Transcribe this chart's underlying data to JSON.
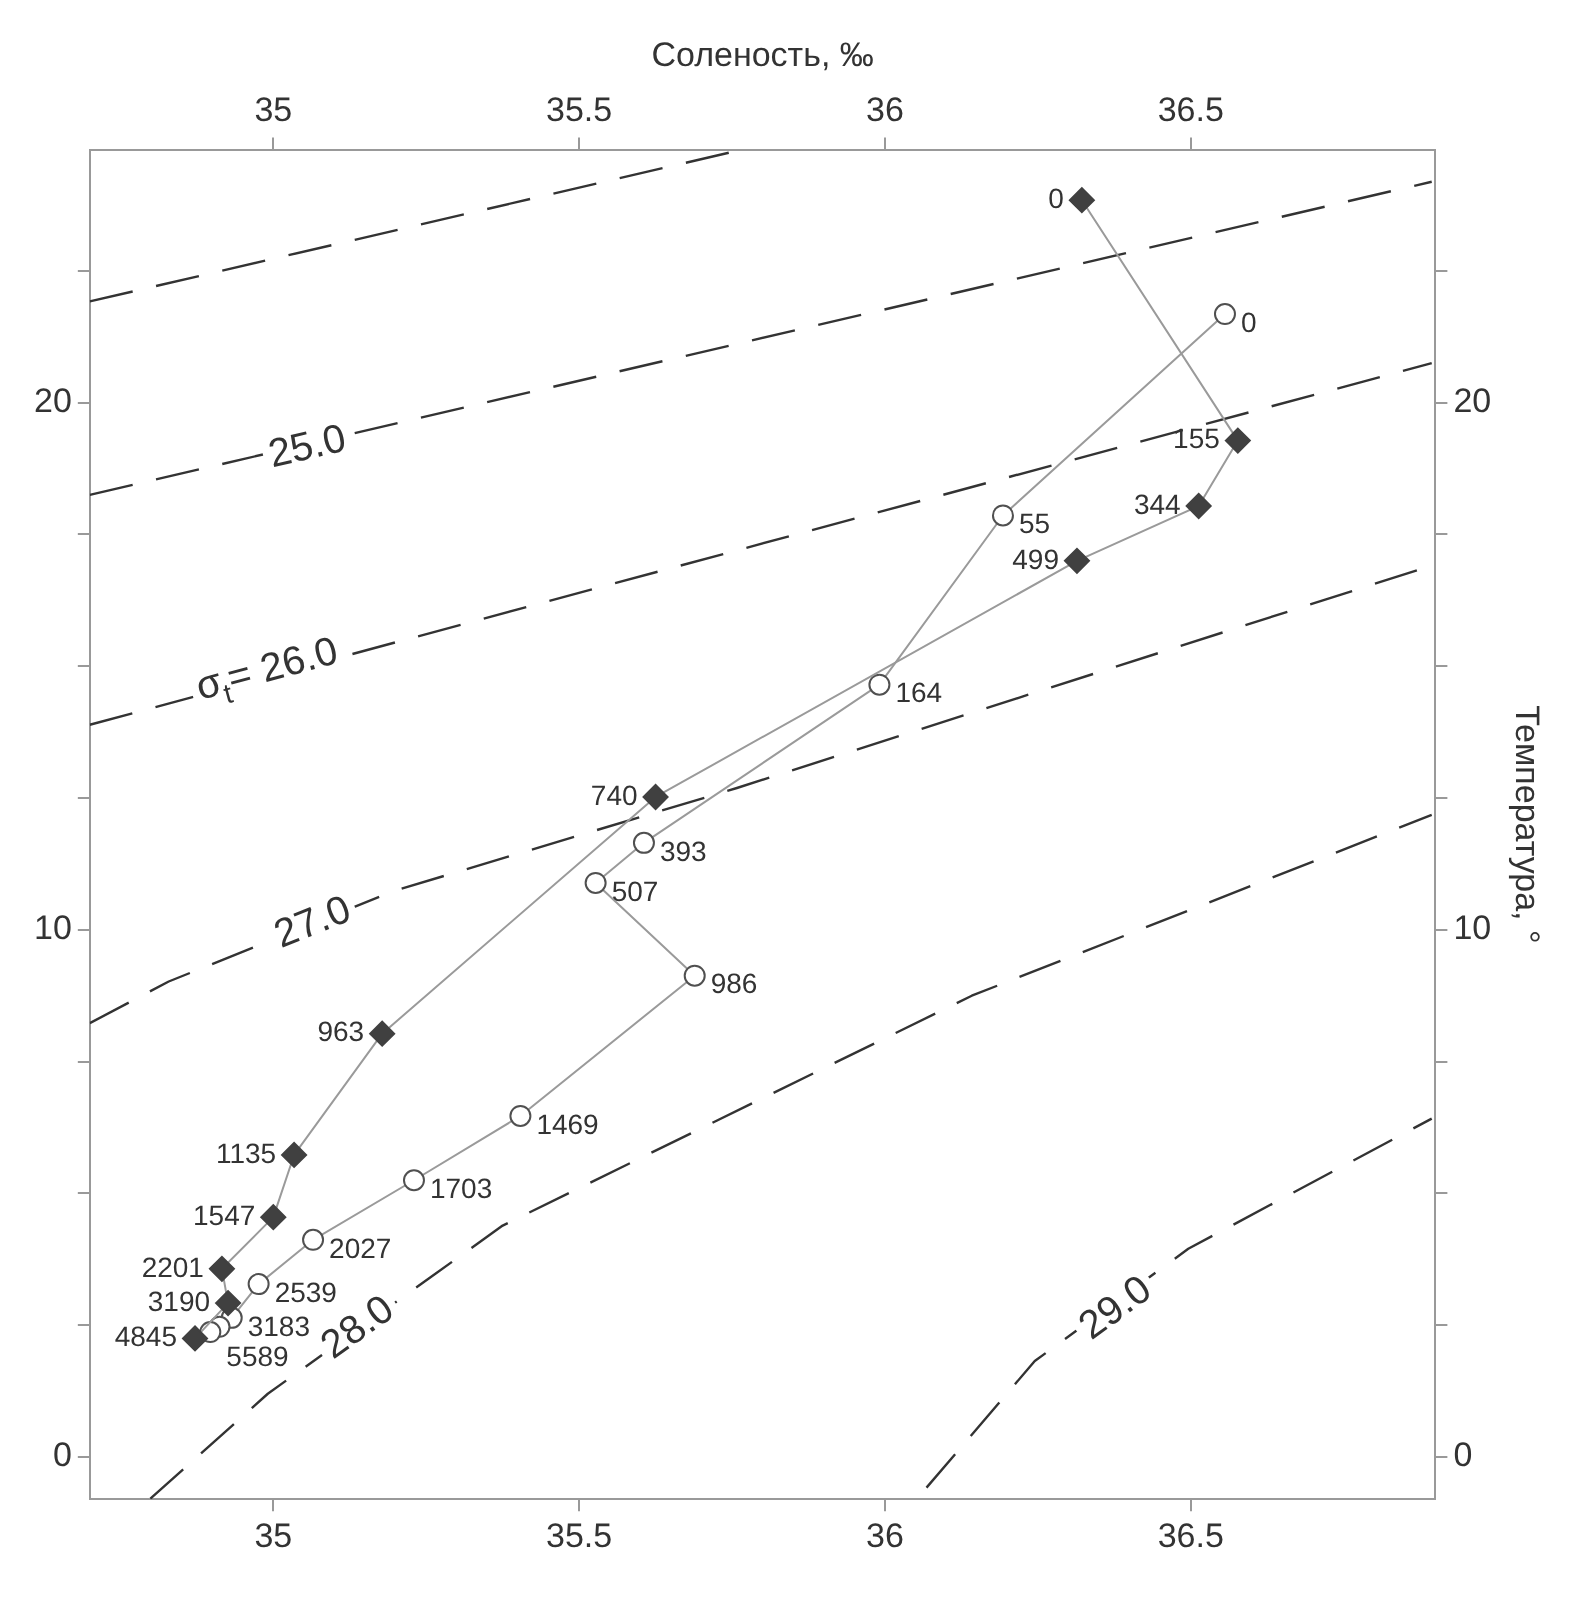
{
  "chart_data": {
    "type": "line",
    "x2label": "Соленость, ‰",
    "y2label": "Температура, °",
    "xlim": [
      34.7,
      36.9
    ],
    "xticks": [
      35,
      35.5,
      36,
      36.5
    ],
    "x2lim": [
      34.7,
      36.9
    ],
    "x2ticks": [
      35,
      35.5,
      36,
      36.5
    ],
    "ylim": [
      -0.8,
      24.8
    ],
    "yticks": [
      0,
      {
        "value": 2.5,
        "label": null
      },
      {
        "value": 5,
        "label": null
      },
      {
        "value": 7.5,
        "label": null
      },
      10,
      {
        "value": 12.5,
        "label": null
      },
      {
        "value": 15,
        "label": null
      },
      {
        "value": 17.5,
        "label": null
      },
      20,
      {
        "value": 22.5,
        "label": null
      }
    ],
    "y2lim": [
      -0.8,
      24.8
    ],
    "y2ticks": [
      0,
      {
        "value": 2.5,
        "label": null
      },
      {
        "value": 5,
        "label": null
      },
      {
        "value": 7.5,
        "label": null
      },
      10,
      {
        "value": 12.5,
        "label": null
      },
      {
        "value": 15,
        "label": null
      },
      {
        "value": 17.5,
        "label": null
      },
      20,
      {
        "value": 22.5,
        "label": null
      }
    ],
    "grid": false,
    "legend": false,
    "series": [
      {
        "color": "#404040",
        "marker": "diamond",
        "line_style": "solid",
        "x": [
          36.322,
          36.577,
          36.513,
          36.314,
          35.625,
          35.178,
          35.034,
          35.0,
          34.916,
          34.926,
          34.872
        ],
        "values": [
          23.84,
          19.28,
          18.04,
          17.0,
          12.52,
          8.03,
          5.73,
          4.55,
          3.57,
          2.92,
          2.25
        ]
      },
      {
        "color": "#505050",
        "marker": "circle",
        "line_style": "solid",
        "x": [
          36.556,
          36.193,
          35.991,
          35.606,
          35.527,
          35.689,
          35.404,
          35.23,
          35.065,
          34.976,
          34.932,
          34.912,
          34.897
        ],
        "values": [
          21.68,
          17.86,
          14.65,
          11.65,
          10.89,
          9.13,
          6.47,
          5.25,
          4.12,
          3.28,
          2.64,
          2.47,
          2.37
        ]
      },
      {
        "color": "#333333",
        "marker": "none",
        "line_style": "dashed",
        "x": [
          34.7,
          35.767
        ],
        "values": [
          21.92,
          24.8
        ]
      },
      {
        "color": "#333333",
        "marker": "none",
        "line_style": "dashed",
        "x": [
          34.7,
          36.894
        ],
        "values": [
          18.25,
          24.19
        ]
      },
      {
        "color": "#333333",
        "marker": "none",
        "line_style": "dashed",
        "x": [
          34.7,
          36.894
        ],
        "values": [
          13.89,
          20.75
        ]
      },
      {
        "color": "#333333",
        "marker": "none",
        "line_style": "dashed",
        "x": [
          34.7,
          34.829,
          35.198,
          35.758,
          36.894
        ],
        "values": [
          8.23,
          9.02,
          10.74,
          12.69,
          16.91
        ]
      },
      {
        "color": "#333333",
        "marker": "none",
        "line_style": "dashed",
        "x": [
          34.799,
          34.991,
          35.375,
          36.142,
          36.894
        ],
        "values": [
          -0.79,
          1.2,
          4.39,
          8.75,
          12.18
        ]
      },
      {
        "color": "#333333",
        "marker": "none",
        "line_style": "dashed",
        "x": [
          36.068,
          36.245,
          36.496,
          36.894
        ],
        "values": [
          -0.58,
          1.82,
          3.95,
          6.42
        ]
      }
    ],
    "annotations": [
      {
        "text": "25.0",
        "x": 35.056,
        "y": 19.14
      },
      {
        "text": "σ$_{t}$= 26.0",
        "x": 34.99,
        "y": 14.92
      },
      {
        "text": "27.0",
        "x": 35.065,
        "y": 10.12
      },
      {
        "text": "28.0",
        "x": 35.139,
        "y": 2.44
      },
      {
        "text": "29.0",
        "x": 36.378,
        "y": 2.81
      },
      {
        "text": "0",
        "x": 36.322,
        "y": 23.84
      },
      {
        "text": "155",
        "x": 36.577,
        "y": 19.28
      },
      {
        "text": "344",
        "x": 36.513,
        "y": 18.04
      },
      {
        "text": "499",
        "x": 36.314,
        "y": 17.0
      },
      {
        "text": "740",
        "x": 35.625,
        "y": 12.52
      },
      {
        "text": "963",
        "x": 35.178,
        "y": 8.03
      },
      {
        "text": "1135",
        "x": 35.034,
        "y": 5.73
      },
      {
        "text": "1547",
        "x": 35.0,
        "y": 4.55
      },
      {
        "text": "2201",
        "x": 34.916,
        "y": 3.57
      },
      {
        "text": "3190",
        "x": 34.926,
        "y": 2.92
      },
      {
        "text": "4845",
        "x": 34.872,
        "y": 2.25
      },
      {
        "text": "0",
        "x": 36.556,
        "y": 21.68
      },
      {
        "text": "55",
        "x": 36.193,
        "y": 17.86
      },
      {
        "text": "164",
        "x": 35.991,
        "y": 14.65
      },
      {
        "text": "393",
        "x": 35.606,
        "y": 11.65
      },
      {
        "text": "507",
        "x": 35.527,
        "y": 10.89
      },
      {
        "text": "986",
        "x": 35.689,
        "y": 9.13
      },
      {
        "text": "1469",
        "x": 35.404,
        "y": 6.47
      },
      {
        "text": "1703",
        "x": 35.23,
        "y": 5.25
      },
      {
        "text": "2027",
        "x": 35.065,
        "y": 4.12
      },
      {
        "text": "2539",
        "x": 34.976,
        "y": 3.28
      },
      {
        "text": "3183",
        "x": 34.932,
        "y": 2.64
      },
      {
        "text": "5589",
        "x": 34.897,
        "y": 2.37
      }
    ]
  }
}
